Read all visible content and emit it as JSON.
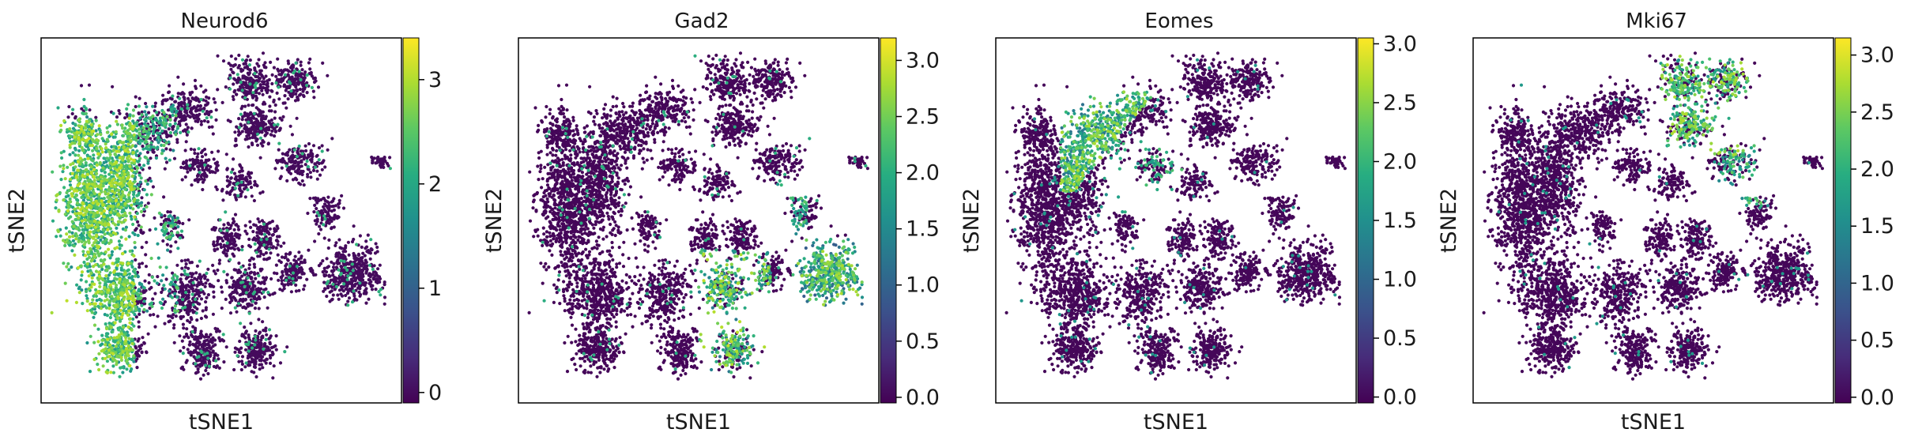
{
  "chart_data": [
    {
      "type": "scatter",
      "title": "Neurod6",
      "xlabel": "tSNE1",
      "ylabel": "tSNE2",
      "colorbar": {
        "colormap": "viridis",
        "vmin": -0.1,
        "vmax": 3.4,
        "ticks": [
          0,
          1,
          2,
          3
        ],
        "tick_labels": [
          "0",
          "1",
          "2",
          "3"
        ]
      },
      "pattern": "left"
    },
    {
      "type": "scatter",
      "title": "Gad2",
      "xlabel": "tSNE1",
      "ylabel": "tSNE2",
      "colorbar": {
        "colormap": "viridis",
        "vmin": -0.05,
        "vmax": 3.2,
        "ticks": [
          0.0,
          0.5,
          1.0,
          1.5,
          2.0,
          2.5,
          3.0
        ],
        "tick_labels": [
          "0.0",
          "0.5",
          "1.0",
          "1.5",
          "2.0",
          "2.5",
          "3.0"
        ]
      },
      "pattern": "lower-right"
    },
    {
      "type": "scatter",
      "title": "Eomes",
      "xlabel": "tSNE1",
      "ylabel": "tSNE2",
      "colorbar": {
        "colormap": "viridis",
        "vmin": -0.05,
        "vmax": 3.05,
        "ticks": [
          0.0,
          0.5,
          1.0,
          1.5,
          2.0,
          2.5,
          3.0
        ],
        "tick_labels": [
          "0.0",
          "0.5",
          "1.0",
          "1.5",
          "2.0",
          "2.5",
          "3.0"
        ]
      },
      "pattern": "upper-left"
    },
    {
      "type": "scatter",
      "title": "Mki67",
      "xlabel": "tSNE1",
      "ylabel": "tSNE2",
      "colorbar": {
        "colormap": "viridis",
        "vmin": -0.05,
        "vmax": 3.15,
        "ticks": [
          0.0,
          0.5,
          1.0,
          1.5,
          2.0,
          2.5,
          3.0
        ],
        "tick_labels": [
          "0.0",
          "0.5",
          "1.0",
          "1.5",
          "2.0",
          "2.5",
          "3.0"
        ]
      },
      "pattern": "top"
    }
  ]
}
